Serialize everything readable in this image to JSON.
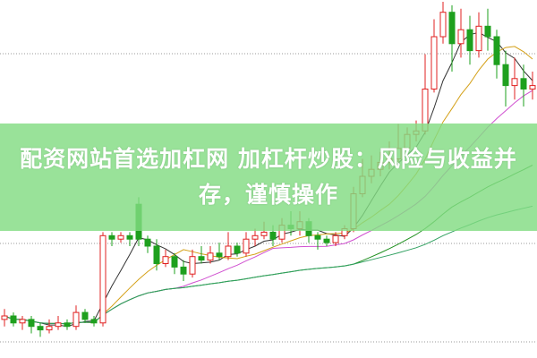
{
  "title": "配资网站首选加杠网 加杠杆炒股：风险与收益并存，谨慎操作",
  "colors": {
    "up": "#e02020",
    "down": "#1ea01e",
    "banner": "#82dc82",
    "grid": "#999999",
    "ma": [
      "#333333",
      "#d4a017",
      "#d050d0",
      "#209020",
      "#30a060"
    ]
  },
  "chart_data": {
    "type": "candlestick",
    "note_units": "relative price (no axis printed)",
    "candles": [
      [
        9,
        10,
        12,
        7
      ],
      [
        10,
        8,
        11,
        7
      ],
      [
        8,
        9,
        10,
        6
      ],
      [
        9,
        7,
        10,
        5
      ],
      [
        7,
        6,
        8,
        4
      ],
      [
        6,
        7,
        9,
        5
      ],
      [
        7,
        8,
        10,
        6
      ],
      [
        8,
        7,
        9,
        6
      ],
      [
        7,
        11,
        13,
        6
      ],
      [
        11,
        9,
        12,
        8
      ],
      [
        9,
        8,
        10,
        7
      ],
      [
        8,
        33,
        34,
        7
      ],
      [
        33,
        32,
        34,
        30
      ],
      [
        32,
        33,
        34,
        31
      ],
      [
        33,
        32,
        34,
        30
      ],
      [
        42,
        32,
        44,
        30
      ],
      [
        32,
        30,
        33,
        28
      ],
      [
        30,
        25,
        32,
        23
      ],
      [
        25,
        27,
        29,
        24
      ],
      [
        27,
        24,
        28,
        22
      ],
      [
        24,
        22,
        26,
        20
      ],
      [
        22,
        27,
        29,
        21
      ],
      [
        27,
        26,
        30,
        25
      ],
      [
        26,
        28,
        30,
        25
      ],
      [
        28,
        27,
        31,
        26
      ],
      [
        27,
        30,
        34,
        26
      ],
      [
        30,
        28,
        31,
        27
      ],
      [
        28,
        32,
        34,
        27
      ],
      [
        32,
        33,
        35,
        30
      ],
      [
        33,
        34,
        37,
        32
      ],
      [
        34,
        32,
        36,
        30
      ],
      [
        32,
        36,
        38,
        31
      ],
      [
        36,
        35,
        40,
        33
      ],
      [
        35,
        37,
        40,
        33
      ],
      [
        37,
        33,
        38,
        31
      ],
      [
        33,
        32,
        34,
        29
      ],
      [
        32,
        31,
        33,
        30
      ],
      [
        31,
        33,
        34,
        30
      ],
      [
        33,
        35,
        36,
        32
      ],
      [
        35,
        45,
        47,
        34
      ],
      [
        45,
        50,
        55,
        44
      ],
      [
        50,
        52,
        56,
        48
      ],
      [
        52,
        54,
        57,
        50
      ],
      [
        54,
        55,
        60,
        52
      ],
      [
        55,
        58,
        65,
        54
      ],
      [
        58,
        62,
        64,
        56
      ],
      [
        62,
        63,
        66,
        60
      ],
      [
        63,
        75,
        85,
        62
      ],
      [
        75,
        90,
        95,
        74
      ],
      [
        90,
        97,
        100,
        88
      ],
      [
        97,
        88,
        99,
        80
      ],
      [
        88,
        92,
        98,
        84
      ],
      [
        92,
        86,
        96,
        82
      ],
      [
        86,
        93,
        97,
        84
      ],
      [
        93,
        90,
        98,
        86
      ],
      [
        90,
        82,
        92,
        78
      ],
      [
        82,
        76,
        86,
        70
      ],
      [
        76,
        78,
        84,
        72
      ],
      [
        78,
        75,
        82,
        70
      ],
      [
        75,
        76,
        80,
        72
      ]
    ],
    "moving_averages": [
      5,
      10,
      20,
      40,
      60
    ],
    "gridlines": "dotted horizontal"
  }
}
